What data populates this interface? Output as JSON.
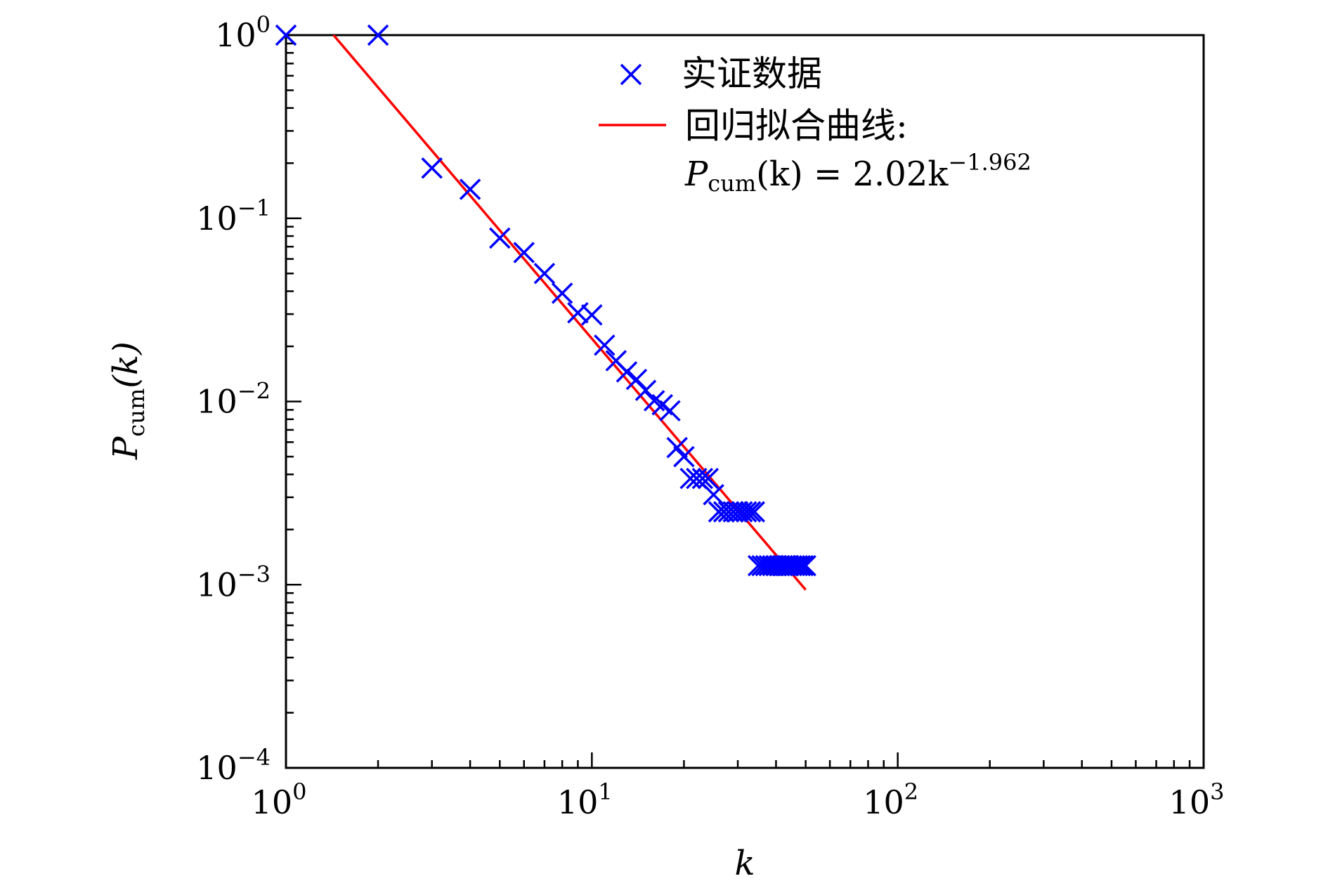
{
  "chart_data": {
    "type": "scatter",
    "xscale": "log",
    "yscale": "log",
    "xlim": [
      1,
      1000
    ],
    "ylim": [
      0.0001,
      1
    ],
    "xlabel": "k",
    "ylabel_main": "P",
    "ylabel_sub": "cum",
    "ylabel_tail": "(k)",
    "x_ticks": [
      {
        "value": 1,
        "base": "10",
        "exp": "0"
      },
      {
        "value": 10,
        "base": "10",
        "exp": "1"
      },
      {
        "value": 100,
        "base": "10",
        "exp": "2"
      },
      {
        "value": 1000,
        "base": "10",
        "exp": "3"
      }
    ],
    "y_ticks": [
      {
        "value": 1,
        "base": "10",
        "exp": "0"
      },
      {
        "value": 0.1,
        "base": "10",
        "exp": "−1"
      },
      {
        "value": 0.01,
        "base": "10",
        "exp": "−2"
      },
      {
        "value": 0.001,
        "base": "10",
        "exp": "−3"
      },
      {
        "value": 0.0001,
        "base": "10",
        "exp": "−4"
      }
    ],
    "grid": false,
    "legend_position": "top-right",
    "series": [
      {
        "name": "实证数据",
        "kind": "scatter",
        "marker": "x",
        "color": "#0000ff",
        "x": [
          1,
          2,
          3,
          4,
          5,
          6,
          7,
          8,
          9,
          10,
          11,
          12,
          13,
          14,
          15,
          16,
          17,
          18,
          19,
          20,
          21,
          22,
          23,
          24,
          25,
          26,
          27,
          28,
          29,
          30,
          31,
          32,
          33,
          34,
          35,
          36,
          37,
          38,
          39,
          40,
          41,
          42,
          43,
          44,
          45,
          46,
          47,
          48,
          49,
          50
        ],
        "y": [
          1,
          1,
          0.188,
          0.144,
          0.078,
          0.065,
          0.05,
          0.039,
          0.0305,
          0.0297,
          0.0203,
          0.0167,
          0.0145,
          0.0132,
          0.0115,
          0.0101,
          0.0096,
          0.0089,
          0.0056,
          0.005,
          0.0038,
          0.0038,
          0.0038,
          0.0038,
          0.0031,
          0.0025,
          0.0025,
          0.0025,
          0.0025,
          0.0025,
          0.0025,
          0.0025,
          0.0025,
          0.0025,
          0.00127,
          0.00127,
          0.00127,
          0.00127,
          0.00127,
          0.00127,
          0.00127,
          0.00127,
          0.00127,
          0.00127,
          0.00127,
          0.00127,
          0.00127,
          0.00127,
          0.00127,
          0.00127
        ]
      },
      {
        "name": "回归拟合曲线:",
        "kind": "line",
        "color": "#ff0000",
        "coefficient": 2.02,
        "exponent": -1.962,
        "x_range": [
          1.43,
          50
        ]
      }
    ],
    "legend": {
      "entry1": "实证数据",
      "entry2": "回归拟合曲线:",
      "formula_p": "P",
      "formula_sub": "cum",
      "formula_mid": "(k) = 2.02k",
      "formula_exp": "−1.962"
    }
  }
}
